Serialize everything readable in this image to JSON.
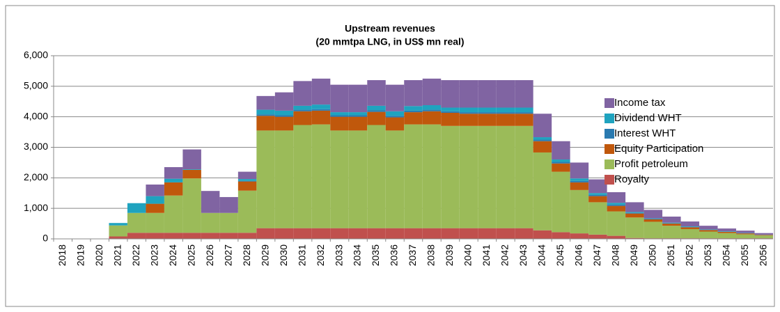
{
  "chart_data": {
    "type": "stacked_bar",
    "title": "Upstream revenues",
    "subtitle": "(20 mmtpa LNG, in US$ mn real)",
    "categories": [
      "2018",
      "2019",
      "2020",
      "2021",
      "2022",
      "2023",
      "2024",
      "2025",
      "2026",
      "2027",
      "2028",
      "2029",
      "2030",
      "2031",
      "2032",
      "2033",
      "2034",
      "2035",
      "2036",
      "2037",
      "2038",
      "2039",
      "2040",
      "2041",
      "2042",
      "2043",
      "2044",
      "2045",
      "2046",
      "2047",
      "2048",
      "2049",
      "2050",
      "2051",
      "2052",
      "2053",
      "2054",
      "2055",
      "2056"
    ],
    "series": [
      {
        "name": "Royalty",
        "color": "#c0504d",
        "values": [
          0,
          0,
          0,
          80,
          200,
          200,
          200,
          200,
          200,
          200,
          200,
          350,
          350,
          350,
          350,
          350,
          350,
          350,
          350,
          350,
          350,
          350,
          350,
          350,
          350,
          350,
          280,
          220,
          180,
          140,
          100,
          30,
          20,
          20,
          20,
          20,
          20,
          20,
          20
        ]
      },
      {
        "name": "Profit petroleum",
        "color": "#9bbb59",
        "values": [
          0,
          0,
          0,
          360,
          650,
          650,
          1220,
          1780,
          650,
          650,
          1380,
          3200,
          3200,
          3380,
          3400,
          3200,
          3200,
          3380,
          3200,
          3400,
          3400,
          3350,
          3350,
          3350,
          3350,
          3350,
          2550,
          1980,
          1420,
          1060,
          800,
          670,
          540,
          410,
          300,
          220,
          170,
          130,
          90
        ]
      },
      {
        "name": "Equity Participation",
        "color": "#c0580c",
        "values": [
          0,
          0,
          0,
          0,
          0,
          300,
          430,
          280,
          0,
          0,
          300,
          480,
          450,
          450,
          450,
          450,
          450,
          430,
          430,
          400,
          430,
          430,
          400,
          400,
          400,
          400,
          370,
          270,
          250,
          200,
          180,
          130,
          80,
          70,
          60,
          50,
          40,
          30,
          20
        ]
      },
      {
        "name": "Interest WHT",
        "color": "#2a7ab0",
        "values": [
          0,
          0,
          0,
          0,
          0,
          0,
          0,
          0,
          0,
          0,
          20,
          50,
          50,
          50,
          50,
          50,
          50,
          50,
          50,
          50,
          50,
          50,
          50,
          50,
          50,
          50,
          50,
          50,
          50,
          40,
          40,
          20,
          10,
          10,
          10,
          5,
          5,
          5,
          5
        ]
      },
      {
        "name": "Dividend WHT",
        "color": "#1fa3bf",
        "values": [
          0,
          0,
          0,
          80,
          320,
          250,
          120,
          20,
          0,
          0,
          60,
          150,
          150,
          130,
          150,
          100,
          100,
          150,
          150,
          150,
          150,
          120,
          150,
          150,
          150,
          150,
          80,
          80,
          80,
          60,
          60,
          30,
          20,
          20,
          20,
          15,
          15,
          10,
          5
        ]
      },
      {
        "name": "Income tax",
        "color": "#8064a2",
        "values": [
          0,
          0,
          0,
          0,
          0,
          380,
          380,
          650,
          720,
          520,
          240,
          450,
          600,
          810,
          850,
          900,
          900,
          840,
          870,
          850,
          870,
          900,
          900,
          900,
          900,
          900,
          770,
          600,
          520,
          450,
          350,
          320,
          280,
          200,
          160,
          120,
          90,
          75,
          50
        ]
      }
    ],
    "ylim": [
      0,
      6000
    ],
    "yticks": [
      0,
      {
        "value": 1000,
        "label": "1,000"
      },
      {
        "value": 2000,
        "label": "2,000"
      },
      {
        "value": 3000,
        "label": "3,000"
      },
      {
        "value": 4000,
        "label": "4,000"
      },
      {
        "value": 5000,
        "label": "5,000"
      },
      {
        "value": 6000,
        "label": "6,000"
      }
    ],
    "grid": true
  }
}
